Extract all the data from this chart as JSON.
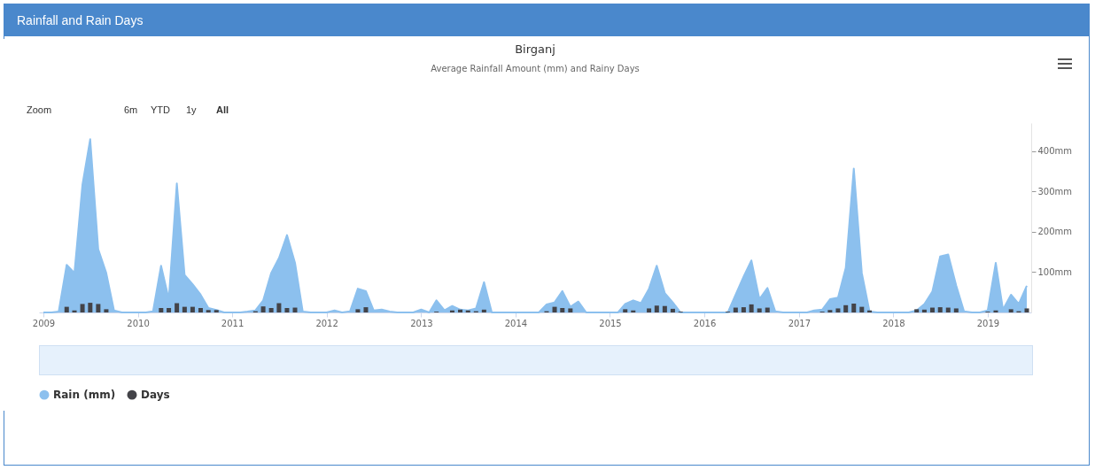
{
  "chart_data": {
    "type": "area",
    "title": "Birganj",
    "subtitle": "Average Rainfall Amount (mm) and Rainy Days",
    "annotations": [
      "Rainfall and Rain Days",
      "Zoom",
      "6m",
      "YTD",
      "1y",
      "All"
    ],
    "x": [
      "2009-01",
      "2009-02",
      "2009-03",
      "2009-04",
      "2009-05",
      "2009-06",
      "2009-07",
      "2009-08",
      "2009-09",
      "2009-10",
      "2009-11",
      "2009-12",
      "2010-01",
      "2010-02",
      "2010-03",
      "2010-04",
      "2010-05",
      "2010-06",
      "2010-07",
      "2010-08",
      "2010-09",
      "2010-10",
      "2010-11",
      "2010-12",
      "2011-01",
      "2011-02",
      "2011-03",
      "2011-04",
      "2011-05",
      "2011-06",
      "2011-07",
      "2011-08",
      "2011-09",
      "2011-10",
      "2011-11",
      "2011-12",
      "2012-01",
      "2012-02",
      "2012-03",
      "2012-04",
      "2012-05",
      "2012-06",
      "2012-07",
      "2012-08",
      "2012-09",
      "2012-10",
      "2012-11",
      "2012-12",
      "2013-01",
      "2013-02",
      "2013-03",
      "2013-04",
      "2013-05",
      "2013-06",
      "2013-07",
      "2013-08",
      "2013-09",
      "2013-10",
      "2013-11",
      "2013-12",
      "2014-01",
      "2014-02",
      "2014-03",
      "2014-04",
      "2014-05",
      "2014-06",
      "2014-07",
      "2014-08",
      "2014-09",
      "2014-10",
      "2014-11",
      "2014-12",
      "2015-01",
      "2015-02",
      "2015-03",
      "2015-04",
      "2015-05",
      "2015-06",
      "2015-07",
      "2015-08",
      "2015-09",
      "2015-10",
      "2015-11",
      "2015-12",
      "2016-01",
      "2016-02",
      "2016-03",
      "2016-04",
      "2016-05",
      "2016-06",
      "2016-07",
      "2016-08",
      "2016-09",
      "2016-10",
      "2016-11",
      "2016-12",
      "2017-01",
      "2017-02",
      "2017-03",
      "2017-04",
      "2017-05",
      "2017-06",
      "2017-07",
      "2017-08",
      "2017-09",
      "2017-10",
      "2017-11",
      "2017-12",
      "2018-01",
      "2018-02",
      "2018-03",
      "2018-04",
      "2018-05",
      "2018-06",
      "2018-07",
      "2018-08",
      "2018-09",
      "2018-10",
      "2018-11",
      "2018-12",
      "2019-01",
      "2019-02",
      "2019-03",
      "2019-04",
      "2019-05",
      "2019-06"
    ],
    "series": [
      {
        "name": "Rain (mm)",
        "color": "#8cc0ee",
        "values": [
          0,
          0,
          2,
          118,
          98,
          317,
          430,
          157,
          98,
          5,
          0,
          0,
          0,
          0,
          3,
          116,
          33,
          320,
          93,
          70,
          44,
          11,
          6,
          0,
          0,
          0,
          2,
          5,
          30,
          98,
          135,
          192,
          123,
          2,
          0,
          0,
          0,
          5,
          0,
          3,
          59,
          53,
          5,
          7,
          2,
          0,
          0,
          0,
          7,
          0,
          30,
          5,
          16,
          7,
          5,
          10,
          75,
          0,
          0,
          0,
          0,
          0,
          0,
          0,
          20,
          25,
          53,
          14,
          27,
          0,
          0,
          0,
          0,
          0,
          21,
          30,
          23,
          59,
          116,
          48,
          25,
          0,
          0,
          0,
          0,
          0,
          0,
          0,
          44,
          89,
          129,
          33,
          61,
          3,
          0,
          0,
          0,
          0,
          5,
          7,
          33,
          37,
          111,
          357,
          98,
          2,
          0,
          0,
          0,
          0,
          0,
          5,
          21,
          52,
          139,
          144,
          67,
          3,
          0,
          0,
          5,
          123,
          7,
          44,
          21,
          66
        ]
      },
      {
        "name": "Days",
        "type": "bar",
        "color": "#434348",
        "values": [
          0,
          0,
          0,
          14,
          5,
          21,
          24,
          21,
          8,
          0,
          0,
          0,
          0,
          0,
          0,
          11,
          11,
          23,
          14,
          14,
          11,
          6,
          6,
          0,
          0,
          0,
          0,
          3,
          15,
          11,
          23,
          11,
          12,
          0,
          0,
          0,
          0,
          0,
          0,
          0,
          8,
          13,
          0,
          0,
          0,
          0,
          0,
          0,
          0,
          0,
          2,
          0,
          5,
          7,
          5,
          3,
          7,
          0,
          0,
          0,
          0,
          0,
          0,
          0,
          3,
          14,
          11,
          10,
          0,
          0,
          0,
          0,
          0,
          0,
          8,
          5,
          0,
          10,
          17,
          16,
          9,
          2,
          0,
          0,
          0,
          0,
          0,
          2,
          12,
          13,
          20,
          10,
          12,
          0,
          0,
          0,
          0,
          0,
          0,
          2,
          6,
          10,
          18,
          22,
          14,
          5,
          0,
          0,
          0,
          0,
          0,
          8,
          7,
          12,
          13,
          12,
          10,
          0,
          0,
          0,
          2,
          5,
          0,
          8,
          3,
          10
        ]
      }
    ],
    "xlim": [
      "2009-01",
      "2019-06"
    ],
    "xticks": [
      "2009",
      "2010",
      "2011",
      "2012",
      "2013",
      "2014",
      "2015",
      "2016",
      "2017",
      "2018",
      "2019"
    ],
    "ylim": [
      0,
      470
    ],
    "yticks": [
      {
        "value": 100,
        "label": "100mm"
      },
      {
        "value": 200,
        "label": "200mm"
      },
      {
        "value": 300,
        "label": "300mm"
      },
      {
        "value": 400,
        "label": "400mm"
      }
    ],
    "legend": "bottom"
  }
}
